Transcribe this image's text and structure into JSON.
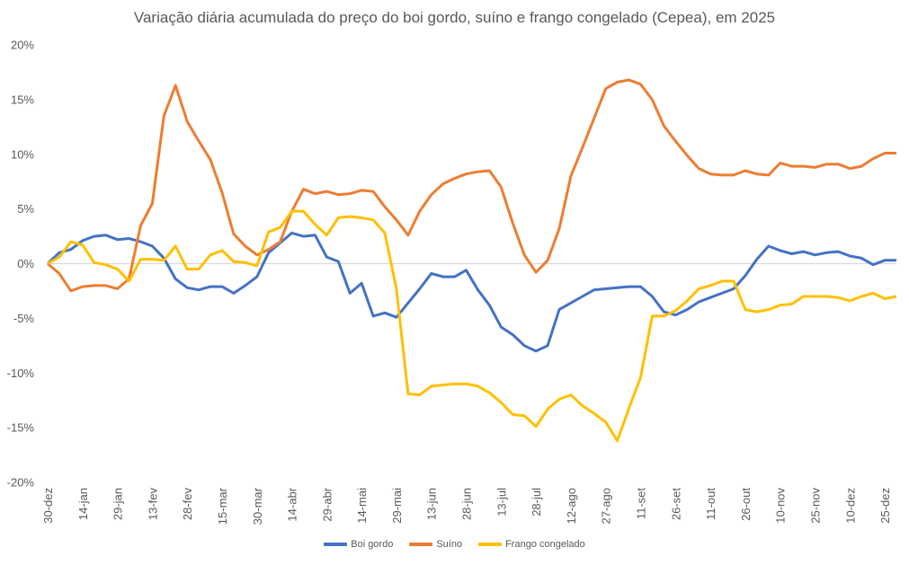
{
  "chart_data": {
    "type": "line",
    "title": "Variação diária acumulada do preço do boi gordo, suíno e frango congelado (Cepea), em 2025",
    "xlabel": "",
    "ylabel": "",
    "ylim": [
      -20,
      20
    ],
    "y_ticks": [
      "20%",
      "15%",
      "10%",
      "5%",
      "0%",
      "-5%",
      "-10%",
      "-15%",
      "-20%"
    ],
    "y_tick_values": [
      20,
      15,
      10,
      5,
      0,
      -5,
      -10,
      -15,
      -20
    ],
    "x_tick_labels": [
      "30-dez",
      "14-jan",
      "29-jan",
      "13-fev",
      "28-fev",
      "15-mar",
      "30-mar",
      "14-abr",
      "29-abr",
      "14-mai",
      "29-mai",
      "13-jun",
      "28-jun",
      "13-jul",
      "28-jul",
      "12-ago",
      "27-ago",
      "11-set",
      "26-set",
      "11-out",
      "26-out",
      "10-nov",
      "25-nov",
      "10-dez",
      "25-dez"
    ],
    "grid": "zero line only",
    "legend": "bottom",
    "x": [
      "2024-12-30",
      "2025-01-04",
      "2025-01-09",
      "2025-01-14",
      "2025-01-19",
      "2025-01-24",
      "2025-01-29",
      "2025-02-03",
      "2025-02-08",
      "2025-02-13",
      "2025-02-18",
      "2025-02-23",
      "2025-02-28",
      "2025-03-05",
      "2025-03-10",
      "2025-03-15",
      "2025-03-20",
      "2025-03-25",
      "2025-03-30",
      "2025-04-04",
      "2025-04-09",
      "2025-04-14",
      "2025-04-19",
      "2025-04-24",
      "2025-04-29",
      "2025-05-04",
      "2025-05-09",
      "2025-05-14",
      "2025-05-19",
      "2025-05-24",
      "2025-05-29",
      "2025-06-03",
      "2025-06-08",
      "2025-06-13",
      "2025-06-18",
      "2025-06-23",
      "2025-06-28",
      "2025-07-03",
      "2025-07-08",
      "2025-07-13",
      "2025-07-18",
      "2025-07-23",
      "2025-07-28",
      "2025-08-02",
      "2025-08-07",
      "2025-08-12",
      "2025-08-17",
      "2025-08-22",
      "2025-08-27",
      "2025-09-01",
      "2025-09-06",
      "2025-09-11",
      "2025-09-16",
      "2025-09-21",
      "2025-09-26",
      "2025-10-01",
      "2025-10-06",
      "2025-10-11",
      "2025-10-16",
      "2025-10-21",
      "2025-10-26",
      "2025-10-31",
      "2025-11-05",
      "2025-11-10",
      "2025-11-15",
      "2025-11-20",
      "2025-11-25",
      "2025-11-30",
      "2025-12-05",
      "2025-12-10",
      "2025-12-15",
      "2025-12-20",
      "2025-12-25",
      "2025-12-30"
    ],
    "series": [
      {
        "name": "Boi gordo",
        "color": "#4472C4",
        "values": [
          0,
          1.0,
          1.3,
          2.1,
          2.5,
          2.6,
          2.2,
          2.3,
          2.0,
          1.6,
          0.5,
          -1.4,
          -2.2,
          -2.4,
          -2.1,
          -2.1,
          -2.7,
          -2.0,
          -1.2,
          1.0,
          1.9,
          2.8,
          2.5,
          2.6,
          0.6,
          0.2,
          -2.7,
          -1.8,
          -4.8,
          -4.5,
          -4.9,
          -3.6,
          -2.3,
          -0.9,
          -1.2,
          -1.2,
          -0.6,
          -2.4,
          -3.8,
          -5.8,
          -6.5,
          -7.5,
          -8.0,
          -7.5,
          -4.2,
          -3.6,
          -3.0,
          -2.4,
          -2.3,
          -2.2,
          -2.1,
          -2.1,
          -3.0,
          -4.4,
          -4.7,
          -4.2,
          -3.5,
          -3.1,
          -2.7,
          -2.3,
          -1.1,
          0.4,
          1.6,
          1.2,
          0.9,
          1.1,
          0.8,
          1.0,
          1.1,
          0.7,
          0.5,
          -0.1,
          0.3,
          0.3
        ]
      },
      {
        "name": "Suíno",
        "color": "#ED7D31",
        "values": [
          0,
          -0.9,
          -2.5,
          -2.1,
          -2.0,
          -2.0,
          -2.3,
          -1.4,
          3.5,
          5.5,
          13.5,
          16.3,
          13.0,
          11.2,
          9.5,
          6.5,
          2.7,
          1.6,
          0.8,
          1.3,
          2.0,
          4.8,
          6.8,
          6.4,
          6.6,
          6.3,
          6.4,
          6.7,
          6.6,
          5.2,
          4.0,
          2.6,
          4.8,
          6.3,
          7.3,
          7.8,
          8.2,
          8.4,
          8.5,
          7.0,
          3.7,
          0.8,
          -0.8,
          0.3,
          3.2,
          8.0,
          10.6,
          13.3,
          16.0,
          16.6,
          16.8,
          16.4,
          15.0,
          12.6,
          11.2,
          9.9,
          8.7,
          8.2,
          8.1,
          8.1,
          8.5,
          8.2,
          8.1,
          9.2,
          8.9,
          8.9,
          8.8,
          9.1,
          9.1,
          8.7,
          8.9,
          9.6,
          10.1,
          10.1
        ]
      },
      {
        "name": "Frango congelado",
        "color": "#FFC000",
        "values": [
          0,
          0.6,
          2.0,
          1.7,
          0.1,
          -0.1,
          -0.5,
          -1.6,
          0.4,
          0.4,
          0.3,
          1.6,
          -0.5,
          -0.5,
          0.8,
          1.2,
          0.2,
          0.1,
          -0.2,
          2.9,
          3.3,
          4.8,
          4.8,
          3.6,
          2.6,
          4.2,
          4.3,
          4.2,
          4.0,
          2.8,
          -2.3,
          -11.9,
          -12.0,
          -11.2,
          -11.1,
          -11.0,
          -11.0,
          -11.2,
          -11.8,
          -12.7,
          -13.8,
          -13.9,
          -14.9,
          -13.3,
          -12.4,
          -12.0,
          -13.0,
          -13.7,
          -14.5,
          -16.2,
          -13.2,
          -10.4,
          -4.8,
          -4.8,
          -4.3,
          -3.4,
          -2.3,
          -2.0,
          -1.6,
          -1.6,
          -4.2,
          -4.4,
          -4.2,
          -3.8,
          -3.7,
          -3.0,
          -3.0,
          -3.0,
          -3.1,
          -3.4,
          -3.0,
          -2.7,
          -3.2,
          -3.0
        ]
      }
    ]
  }
}
